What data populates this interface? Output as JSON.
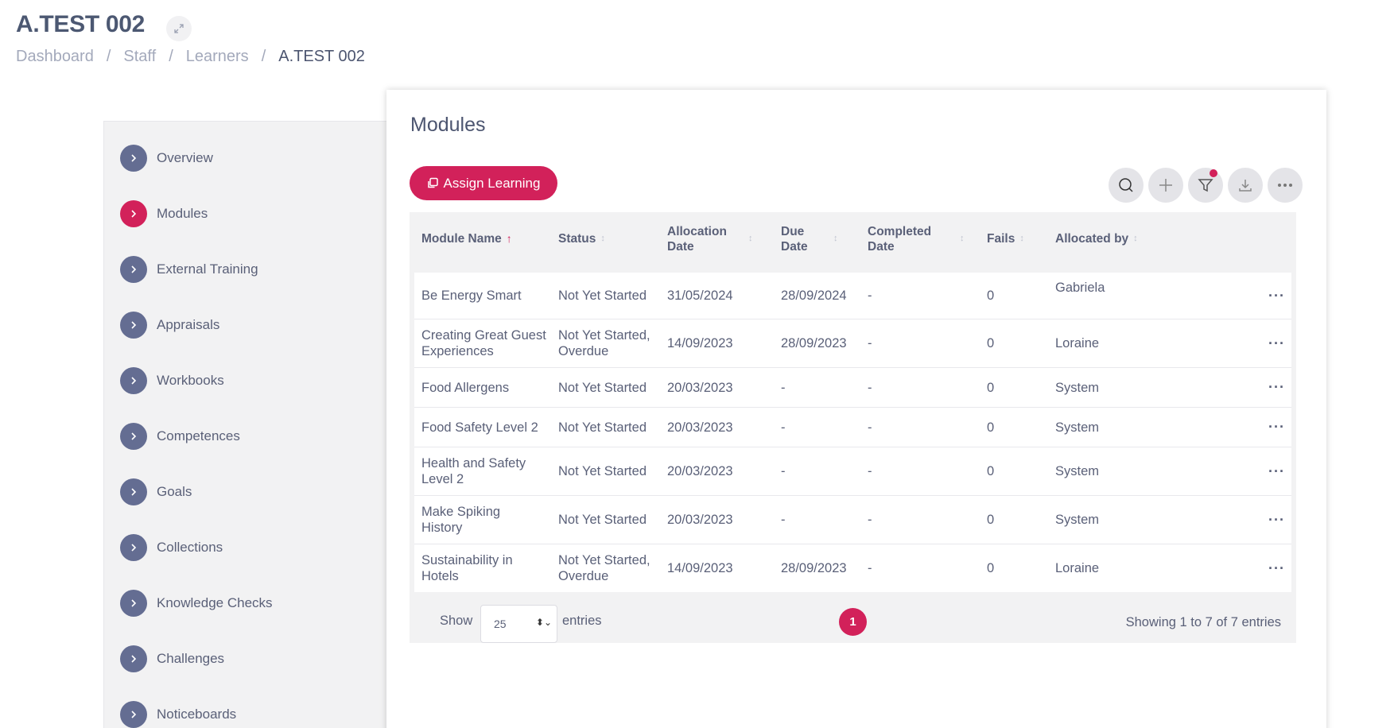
{
  "header": {
    "title": "A.TEST 002",
    "expand_icon": "expand-icon",
    "breadcrumb": [
      "Dashboard",
      "Staff",
      "Learners",
      "A.TEST 002"
    ]
  },
  "sidebar": {
    "items": [
      {
        "label": "Overview",
        "active": false
      },
      {
        "label": "Modules",
        "active": true
      },
      {
        "label": "External Training",
        "active": false
      },
      {
        "label": "Appraisals",
        "active": false
      },
      {
        "label": "Workbooks",
        "active": false
      },
      {
        "label": "Competences",
        "active": false
      },
      {
        "label": "Goals",
        "active": false
      },
      {
        "label": "Collections",
        "active": false
      },
      {
        "label": "Knowledge Checks",
        "active": false
      },
      {
        "label": "Challenges",
        "active": false
      },
      {
        "label": "Noticeboards",
        "active": false
      }
    ]
  },
  "main": {
    "title": "Modules",
    "assign_label": "Assign Learning",
    "toolbar_icons": [
      "search-icon",
      "plus-icon",
      "filter-icon",
      "download-icon",
      "more-icon"
    ],
    "columns": [
      "Module Name",
      "Status",
      "Allocation Date",
      "Due Date",
      "Completed Date",
      "Fails",
      "Allocated by"
    ],
    "rows": [
      {
        "name": "Be Energy Smart",
        "status": "Not Yet Started",
        "allocation": "31/05/2024",
        "due": "28/09/2024",
        "completed": "-",
        "fails": "0",
        "by": "Gabriela"
      },
      {
        "name": "Creating Great Guest Experiences",
        "status": "Not Yet Started, Overdue",
        "allocation": "14/09/2023",
        "due": "28/09/2023",
        "completed": "-",
        "fails": "0",
        "by": "Loraine"
      },
      {
        "name": "Food Allergens",
        "status": "Not Yet Started",
        "allocation": "20/03/2023",
        "due": "-",
        "completed": "-",
        "fails": "0",
        "by": "System"
      },
      {
        "name": "Food Safety Level 2",
        "status": "Not Yet Started",
        "allocation": "20/03/2023",
        "due": "-",
        "completed": "-",
        "fails": "0",
        "by": "System"
      },
      {
        "name": "Health and Safety Level 2",
        "status": "Not Yet Started",
        "allocation": "20/03/2023",
        "due": "-",
        "completed": "-",
        "fails": "0",
        "by": "System"
      },
      {
        "name": "Make Spiking History",
        "status": "Not Yet Started",
        "allocation": "20/03/2023",
        "due": "-",
        "completed": "-",
        "fails": "0",
        "by": "System"
      },
      {
        "name": "Sustainability in Hotels",
        "status": "Not Yet Started, Overdue",
        "allocation": "14/09/2023",
        "due": "28/09/2023",
        "completed": "-",
        "fails": "0",
        "by": "Loraine"
      }
    ],
    "footer": {
      "show_label": "Show",
      "page_size": "25",
      "entries_label": "entries",
      "current_page": "1",
      "showing_text": "Showing 1 to 7 of 7 entries"
    }
  },
  "colors": {
    "accent": "#d2215a",
    "nav_dot": "#646d92",
    "text": "#5a6078"
  }
}
